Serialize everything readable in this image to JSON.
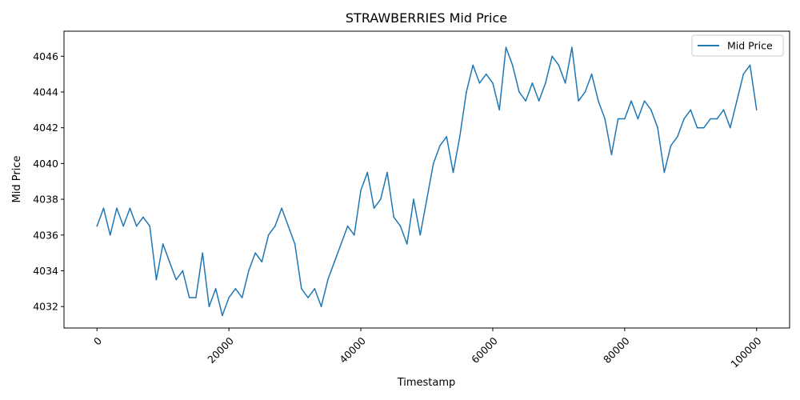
{
  "chart_data": {
    "type": "line",
    "title": "STRAWBERRIES Mid Price",
    "xlabel": "Timestamp",
    "ylabel": "Mid Price",
    "xlim": [
      -5000,
      105000
    ],
    "ylim": [
      4030.8,
      4047.4
    ],
    "xticks": [
      0,
      20000,
      40000,
      60000,
      80000,
      100000
    ],
    "yticks": [
      4032,
      4034,
      4036,
      4038,
      4040,
      4042,
      4044,
      4046
    ],
    "grid": false,
    "legend_position": "top-right",
    "series": [
      {
        "name": "Mid Price",
        "color": "#1f77b4",
        "x": [
          0,
          1000,
          2000,
          3000,
          4000,
          5000,
          6000,
          7000,
          8000,
          9000,
          10000,
          11000,
          12000,
          13000,
          14000,
          15000,
          16000,
          17000,
          18000,
          19000,
          20000,
          21000,
          22000,
          23000,
          24000,
          25000,
          26000,
          27000,
          28000,
          29000,
          30000,
          31000,
          32000,
          33000,
          34000,
          35000,
          36000,
          37000,
          38000,
          39000,
          40000,
          41000,
          42000,
          43000,
          44000,
          45000,
          46000,
          47000,
          48000,
          49000,
          50000,
          51000,
          52000,
          53000,
          54000,
          55000,
          56000,
          57000,
          58000,
          59000,
          60000,
          61000,
          62000,
          63000,
          64000,
          65000,
          66000,
          67000,
          68000,
          69000,
          70000,
          71000,
          72000,
          73000,
          74000,
          75000,
          76000,
          77000,
          78000,
          79000,
          80000,
          81000,
          82000,
          83000,
          84000,
          85000,
          86000,
          87000,
          88000,
          89000,
          90000,
          91000,
          92000,
          93000,
          94000,
          95000,
          96000,
          97000,
          98000,
          99000,
          100000
        ],
        "y": [
          4036.5,
          4037.5,
          4036,
          4037.5,
          4036.5,
          4037.5,
          4036.5,
          4037,
          4036.5,
          4033.5,
          4035.5,
          4034.5,
          4033.5,
          4034,
          4032.5,
          4032.5,
          4035,
          4032,
          4033,
          4031.5,
          4032.5,
          4033,
          4032.5,
          4034,
          4035,
          4034.5,
          4036,
          4036.5,
          4037.5,
          4036.5,
          4035.5,
          4033,
          4032.5,
          4033,
          4032,
          4033.5,
          4034.5,
          4035.5,
          4036.5,
          4036,
          4038.5,
          4039.5,
          4037.5,
          4038,
          4039.5,
          4037,
          4036.5,
          4035.5,
          4038,
          4036,
          4038,
          4040,
          4041,
          4041.5,
          4039.5,
          4041.5,
          4044,
          4045.5,
          4044.5,
          4045,
          4044.5,
          4043,
          4046.5,
          4045.5,
          4044,
          4043.5,
          4044.5,
          4043.5,
          4044.5,
          4046,
          4045.5,
          4044.5,
          4046.5,
          4043.5,
          4044,
          4045,
          4043.5,
          4042.5,
          4040.5,
          4042.5,
          4042.5,
          4043.5,
          4042.5,
          4043.5,
          4043,
          4042,
          4039.5,
          4041,
          4041.5,
          4042.5,
          4043,
          4042,
          4042,
          4042.5,
          4042.5,
          4043,
          4042,
          4043.5,
          4045,
          4045.5,
          4043
        ]
      }
    ]
  }
}
